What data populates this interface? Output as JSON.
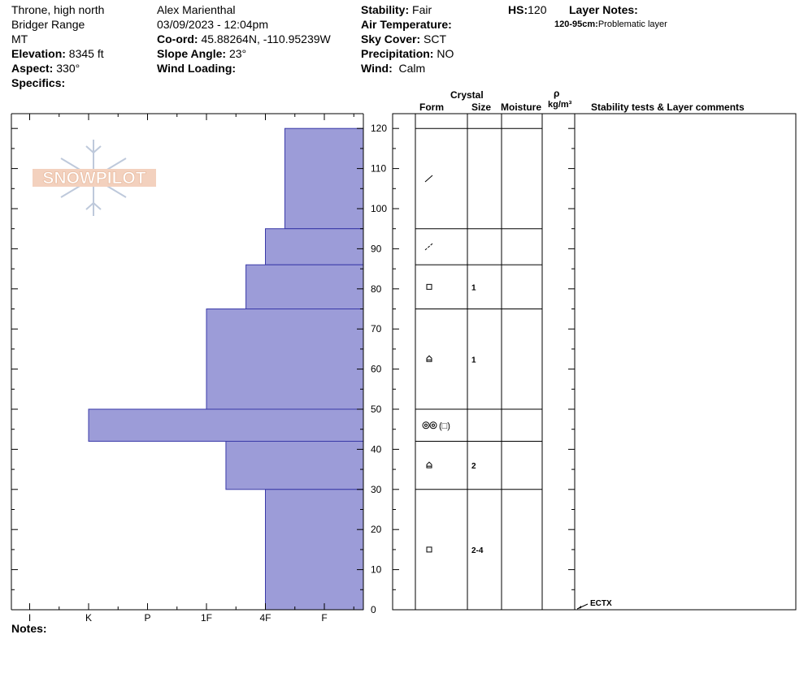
{
  "header": {
    "location": "Throne, high north",
    "range": "Bridger Range",
    "state": "MT",
    "elevation_label": "Elevation:",
    "elevation_value": "8345 ft",
    "aspect_label": "Aspect:",
    "aspect_value": "330°",
    "specifics_label": "Specifics:",
    "observer": "Alex Marienthal",
    "datetime": "03/09/2023 - 12:04pm",
    "coord_label": "Co-ord:",
    "coord_value": "45.88264N, -110.95239W",
    "slope_label": "Slope Angle:",
    "slope_value": "23°",
    "wind_loading_label": "Wind Loading:",
    "stability_label": "Stability:",
    "stability_value": "Fair",
    "air_temp_label": "Air Temperature:",
    "sky_label": "Sky Cover:",
    "sky_value": "SCT",
    "precip_label": "Precipitation:",
    "precip_value": "NO",
    "wind_label": "Wind:",
    "wind_value": "Calm",
    "hs_label": "HS:",
    "hs_value": "120",
    "layer_notes_label": "Layer Notes:",
    "layer_note_range": "120-95cm:",
    "layer_note_text": "Problematic layer"
  },
  "logo": {
    "text": "SNOWPILOT"
  },
  "columns": {
    "crystal": "Crystal",
    "form": "Form",
    "size": "Size",
    "moisture": "Moisture",
    "rho": "ρ",
    "density_unit": "kg/m³",
    "stability": "Stability tests & Layer comments"
  },
  "notes_label": "Notes:",
  "colors": {
    "hardness_fill": "#9c9cd8",
    "hardness_stroke": "#3a3aa8"
  },
  "chart_data": {
    "type": "bar",
    "orientation": "horizontal",
    "ylabel": "",
    "xlabel": "",
    "ylim": [
      0,
      125
    ],
    "yticks": [
      0,
      10,
      20,
      30,
      40,
      50,
      60,
      70,
      80,
      90,
      100,
      110,
      120
    ],
    "hardness_ticks": [
      "I",
      "K",
      "P",
      "1F",
      "4F",
      "F"
    ],
    "hardness_scale": {
      "F": 0,
      "4F": 1,
      "1F": 2,
      "P": 3,
      "K": 4,
      "I": 5
    },
    "layers": [
      {
        "top": 120,
        "bottom": 95,
        "hardness": 0.67,
        "form": "partly-decomposed",
        "size": ""
      },
      {
        "top": 95,
        "bottom": 86,
        "hardness": 1.0,
        "form": "partly-decomposed-broken",
        "size": ""
      },
      {
        "top": 86,
        "bottom": 75,
        "hardness": 1.33,
        "form": "faceted",
        "size": "1"
      },
      {
        "top": 75,
        "bottom": 50,
        "hardness": 2.0,
        "form": "depth-hoar",
        "size": "1"
      },
      {
        "top": 50,
        "bottom": 42,
        "hardness": 4.0,
        "form": "melt-forms-faceted",
        "form_label": "(□)",
        "size": ""
      },
      {
        "top": 42,
        "bottom": 30,
        "hardness": 1.67,
        "form": "depth-hoar",
        "size": "2"
      },
      {
        "top": 30,
        "bottom": 0,
        "hardness": 1.0,
        "form": "faceted",
        "size": "2-4"
      }
    ],
    "tests": [
      {
        "depth": 0,
        "label": "ECTX"
      }
    ]
  }
}
